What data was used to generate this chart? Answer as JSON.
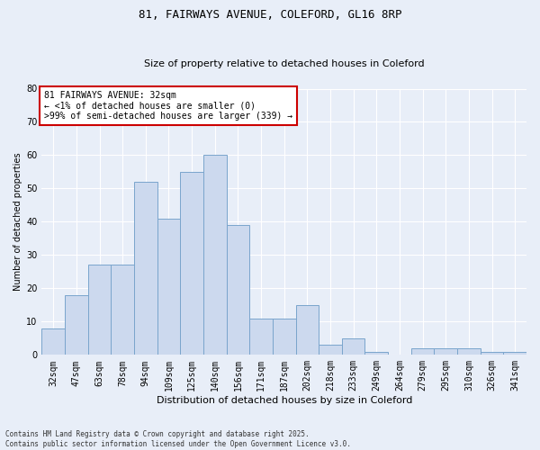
{
  "title": "81, FAIRWAYS AVENUE, COLEFORD, GL16 8RP",
  "subtitle": "Size of property relative to detached houses in Coleford",
  "xlabel": "Distribution of detached houses by size in Coleford",
  "ylabel": "Number of detached properties",
  "categories": [
    "32sqm",
    "47sqm",
    "63sqm",
    "78sqm",
    "94sqm",
    "109sqm",
    "125sqm",
    "140sqm",
    "156sqm",
    "171sqm",
    "187sqm",
    "202sqm",
    "218sqm",
    "233sqm",
    "249sqm",
    "264sqm",
    "279sqm",
    "295sqm",
    "310sqm",
    "326sqm",
    "341sqm"
  ],
  "values": [
    8,
    18,
    27,
    27,
    52,
    41,
    55,
    60,
    39,
    11,
    11,
    15,
    3,
    5,
    1,
    0,
    2,
    2,
    2,
    1,
    1
  ],
  "bar_color": "#ccd9ee",
  "bar_edge_color": "#7aa5cc",
  "annotation_box_facecolor": "#ffffff",
  "annotation_border_color": "#cc0000",
  "annotation_text_line1": "81 FAIRWAYS AVENUE: 32sqm",
  "annotation_text_line2": "← <1% of detached houses are smaller (0)",
  "annotation_text_line3": ">99% of semi-detached houses are larger (339) →",
  "ylim": [
    0,
    80
  ],
  "yticks": [
    0,
    10,
    20,
    30,
    40,
    50,
    60,
    70,
    80
  ],
  "footer_line1": "Contains HM Land Registry data © Crown copyright and database right 2025.",
  "footer_line2": "Contains public sector information licensed under the Open Government Licence v3.0.",
  "bg_color": "#e8eef8",
  "plot_bg_color": "#e8eef8",
  "grid_color": "#ffffff",
  "title_fontsize": 9,
  "subtitle_fontsize": 8,
  "xlabel_fontsize": 8,
  "ylabel_fontsize": 7,
  "tick_fontsize": 7,
  "annot_fontsize": 7
}
